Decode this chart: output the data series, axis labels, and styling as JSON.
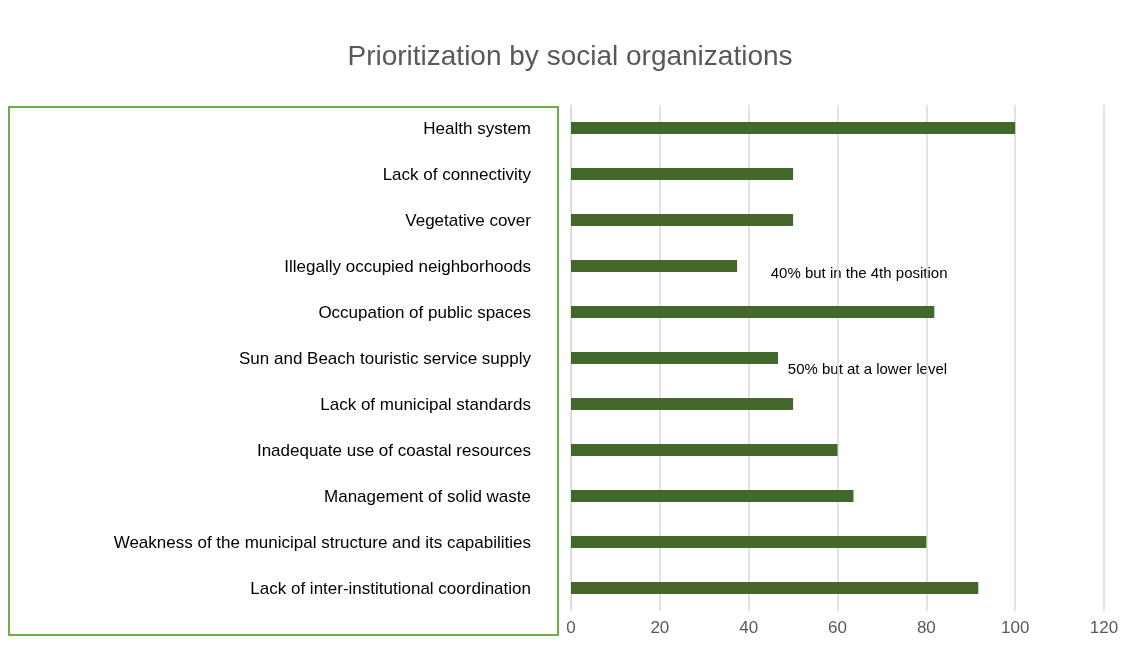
{
  "chart_data": {
    "type": "bar",
    "orientation": "horizontal",
    "title": "Prioritization by social organizations",
    "categories": [
      "Health system",
      "Lack of connectivity",
      "Vegetative cover",
      "Illegally occupied neighborhoods",
      "Occupation of public spaces",
      "Sun and Beach touristic service supply",
      "Lack of municipal standards",
      "Inadequate use of coastal resources",
      "Management of solid waste",
      "Weakness of the municipal structure and its capabilities",
      "Lack of inter-institutional coordination"
    ],
    "values": [
      100,
      50,
      50,
      37.4,
      81.8,
      46.6,
      50,
      60,
      63.6,
      80,
      91.7
    ],
    "color": "#43682b",
    "xlim": [
      0,
      120
    ],
    "xticks": [
      0,
      20,
      40,
      60,
      80,
      100,
      120
    ],
    "grid": "x",
    "annotations": [
      "40% but in the 4th position",
      "50% but at a lower level"
    ]
  }
}
